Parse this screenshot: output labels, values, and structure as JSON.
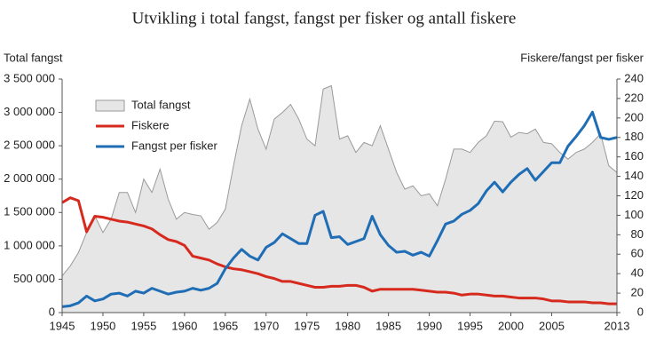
{
  "chart_data": {
    "type": "line",
    "title": "Utvikling i total fangst, fangst per fisker og antall fiskere",
    "y_label": "Total fangst",
    "y2_label": "Fiskere/fangst per fisker",
    "x": [
      1945,
      1946,
      1947,
      1948,
      1949,
      1950,
      1951,
      1952,
      1953,
      1954,
      1955,
      1956,
      1957,
      1958,
      1959,
      1960,
      1961,
      1962,
      1963,
      1964,
      1965,
      1966,
      1967,
      1968,
      1969,
      1970,
      1971,
      1972,
      1973,
      1974,
      1975,
      1976,
      1977,
      1978,
      1979,
      1980,
      1981,
      1982,
      1983,
      1984,
      1985,
      1986,
      1987,
      1988,
      1989,
      1990,
      1991,
      1992,
      1993,
      1994,
      1995,
      1996,
      1997,
      1998,
      1999,
      2000,
      2001,
      2002,
      2003,
      2004,
      2005,
      2006,
      2007,
      2008,
      2009,
      2010,
      2011,
      2012,
      2013
    ],
    "xlim": [
      1945,
      2013
    ],
    "xticks": [
      1945,
      1950,
      1955,
      1960,
      1965,
      1970,
      1975,
      1980,
      1985,
      1990,
      1995,
      2000,
      2005,
      2013
    ],
    "ylim": [
      0,
      3500000
    ],
    "yticks": [
      {
        "value": 0,
        "label": "0"
      },
      {
        "value": 500000,
        "label": "500 000"
      },
      {
        "value": 1000000,
        "label": "1 000 000"
      },
      {
        "value": 1500000,
        "label": "1 500 000"
      },
      {
        "value": 2000000,
        "label": "2 000 000"
      },
      {
        "value": 2500000,
        "label": "2 500 000"
      },
      {
        "value": 3000000,
        "label": "3 000 000"
      },
      {
        "value": 3500000,
        "label": "3 500 000"
      }
    ],
    "y2lim": [
      0,
      240
    ],
    "y2ticks": [
      0,
      20,
      40,
      60,
      80,
      100,
      120,
      140,
      160,
      180,
      200,
      220,
      240
    ],
    "series": [
      {
        "name": "Total fangst",
        "type": "area",
        "color": "#e6e6e6",
        "values": [
          550000,
          700000,
          900000,
          1200000,
          1450000,
          1200000,
          1400000,
          1800000,
          1800000,
          1500000,
          2000000,
          1800000,
          2150000,
          1700000,
          1400000,
          1500000,
          1470000,
          1450000,
          1250000,
          1350000,
          1550000,
          2200000,
          2800000,
          3200000,
          2750000,
          2450000,
          2900000,
          3000000,
          3120000,
          2900000,
          2600000,
          2500000,
          3350000,
          3400000,
          2600000,
          2650000,
          2400000,
          2550000,
          2500000,
          2800000,
          2450000,
          2100000,
          1850000,
          1900000,
          1750000,
          1780000,
          1600000,
          2000000,
          2450000,
          2450000,
          2400000,
          2550000,
          2650000,
          2870000,
          2860000,
          2630000,
          2700000,
          2680000,
          2750000,
          2550000,
          2530000,
          2400000,
          2300000,
          2400000,
          2450000,
          2550000,
          2680000,
          2200000,
          2100000
        ]
      },
      {
        "name": "Fiskere",
        "type": "line",
        "axis": "y2",
        "color": "#d62a1e",
        "values": [
          113,
          118,
          115,
          83,
          99,
          98,
          96,
          94,
          93,
          91,
          89,
          86,
          80,
          75,
          73,
          69,
          58,
          56,
          54,
          50,
          47,
          45,
          44,
          42,
          40,
          37,
          35,
          32,
          32,
          30,
          28,
          26,
          26,
          27,
          27,
          28,
          28,
          26,
          22,
          24,
          24,
          24,
          24,
          24,
          23,
          22,
          21,
          21,
          20,
          18,
          19,
          19,
          18,
          17,
          17,
          16,
          15,
          15,
          15,
          14,
          12,
          12,
          11,
          11,
          11,
          10,
          10,
          9,
          9
        ]
      },
      {
        "name": "Fangst per fisker",
        "type": "line",
        "axis": "y2",
        "color": "#1f6db5",
        "values": [
          6,
          7,
          10,
          17,
          12,
          14,
          19,
          20,
          17,
          22,
          20,
          25,
          22,
          19,
          21,
          22,
          25,
          23,
          25,
          30,
          45,
          56,
          65,
          58,
          54,
          67,
          72,
          81,
          76,
          71,
          71,
          100,
          104,
          77,
          78,
          70,
          73,
          76,
          99,
          80,
          69,
          62,
          63,
          59,
          62,
          58,
          74,
          91,
          94,
          101,
          105,
          112,
          125,
          134,
          124,
          134,
          142,
          148,
          136,
          145,
          154,
          154,
          171,
          181,
          192,
          206,
          180,
          178,
          180
        ]
      }
    ]
  }
}
